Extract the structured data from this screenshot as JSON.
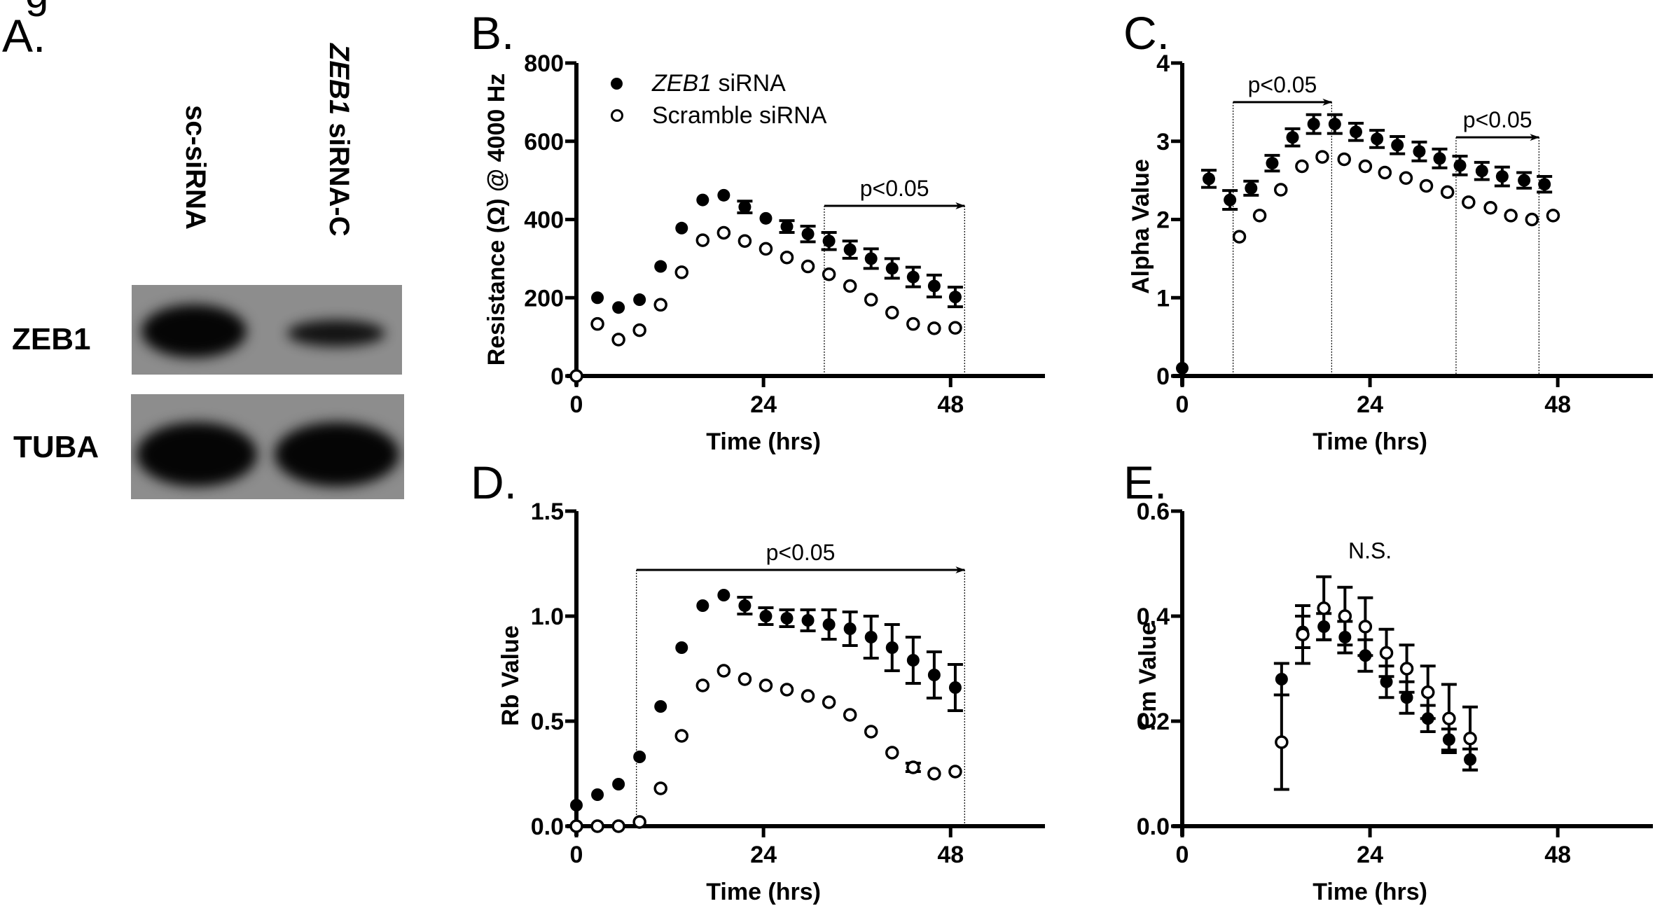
{
  "figure_fragment_top": "g",
  "panelA": {
    "letter": "A.",
    "lanes": [
      {
        "label": "sc-siRNA",
        "italic_part": "",
        "rest": "sc-siRNA"
      },
      {
        "label": "ZEB1 siRNA-C",
        "italic_part": "ZEB1",
        "rest": " siRNA-C"
      }
    ],
    "bands": [
      {
        "label": "ZEB1",
        "intensities": [
          1.0,
          0.55
        ]
      },
      {
        "label": "TUBA",
        "intensities": [
          1.0,
          1.0
        ]
      }
    ]
  },
  "legend": {
    "entries": [
      {
        "marker": "filled-circle",
        "italic_part": "ZEB1",
        "rest": " siRNA"
      },
      {
        "marker": "open-circle",
        "italic_part": "",
        "rest": "Scramble siRNA"
      }
    ]
  },
  "chart_data": [
    {
      "id": "B",
      "letter": "B.",
      "type": "scatter",
      "title": "",
      "xlabel": "Time (hrs)",
      "ylabel": "Resistance (Ω) @ 4000 Hz",
      "xlim": [
        0,
        60
      ],
      "ylim": [
        0,
        800
      ],
      "xticks": [
        0,
        24,
        48
      ],
      "yticks": [
        0,
        200,
        400,
        600,
        800
      ],
      "ytick_labels": [
        "0",
        "200",
        "400",
        "600",
        "800"
      ],
      "grid": false,
      "legend_position": "top-left",
      "series": [
        {
          "name": "ZEB1 siRNA",
          "marker": "filled",
          "x": [
            0,
            2.7,
            5.4,
            8.1,
            10.8,
            13.5,
            16.2,
            18.9,
            21.6,
            24.3,
            27,
            29.7,
            32.4,
            35.1,
            37.8,
            40.5,
            43.2,
            45.9,
            48.6
          ],
          "y": [
            0,
            200,
            175,
            195,
            280,
            378,
            450,
            462,
            432,
            403,
            382,
            363,
            345,
            323,
            300,
            275,
            253,
            230,
            202
          ],
          "err": [
            0,
            0,
            0,
            0,
            0,
            0,
            0,
            0,
            15,
            0,
            15,
            20,
            22,
            22,
            25,
            25,
            25,
            28,
            25
          ]
        },
        {
          "name": "Scramble siRNA",
          "marker": "open",
          "x": [
            0,
            2.7,
            5.4,
            8.1,
            10.8,
            13.5,
            16.2,
            18.9,
            21.6,
            24.3,
            27,
            29.7,
            32.4,
            35.1,
            37.8,
            40.5,
            43.2,
            45.9,
            48.6
          ],
          "y": [
            0,
            133,
            93,
            117,
            182,
            265,
            347,
            366,
            345,
            325,
            303,
            280,
            260,
            230,
            195,
            162,
            133,
            122,
            123
          ],
          "err": []
        }
      ],
      "annotations": [
        {
          "text": "p<0.05",
          "x_start": 31.8,
          "x_end": 49.8,
          "y": 435
        }
      ]
    },
    {
      "id": "C",
      "letter": "C.",
      "type": "scatter",
      "title": "",
      "xlabel": "Time (hrs)",
      "ylabel": "Alpha Value",
      "xlim": [
        0,
        60
      ],
      "ylim": [
        0,
        4
      ],
      "xticks": [
        0,
        24,
        48
      ],
      "yticks": [
        0,
        1,
        2,
        3,
        4
      ],
      "ytick_labels": [
        "0",
        "1",
        "2",
        "3",
        "4"
      ],
      "grid": false,
      "series": [
        {
          "name": "ZEB1 siRNA",
          "marker": "filled",
          "x": [
            0,
            3.4,
            6.1,
            8.8,
            11.5,
            14.1,
            16.8,
            19.5,
            22.2,
            24.9,
            27.5,
            30.3,
            32.9,
            35.5,
            38.3,
            40.9,
            43.7,
            46.3
          ],
          "y": [
            0.1,
            2.52,
            2.25,
            2.4,
            2.72,
            3.05,
            3.22,
            3.22,
            3.12,
            3.03,
            2.95,
            2.87,
            2.78,
            2.69,
            2.62,
            2.55,
            2.5,
            2.45
          ],
          "err": [
            0,
            0.11,
            0.12,
            0.09,
            0.1,
            0.11,
            0.12,
            0.12,
            0.11,
            0.11,
            0.11,
            0.12,
            0.12,
            0.12,
            0.11,
            0.12,
            0.1,
            0.1
          ]
        },
        {
          "name": "Scramble siRNA",
          "marker": "open",
          "x": [
            7.3,
            9.9,
            12.6,
            15.3,
            17.9,
            20.7,
            23.4,
            25.9,
            28.6,
            31.2,
            33.9,
            36.6,
            39.4,
            42,
            44.7,
            47.4
          ],
          "y": [
            1.78,
            2.05,
            2.38,
            2.68,
            2.8,
            2.77,
            2.68,
            2.6,
            2.53,
            2.43,
            2.35,
            2.22,
            2.15,
            2.05,
            2.0,
            2.05
          ],
          "err": []
        }
      ],
      "annotations": [
        {
          "text": "p<0.05",
          "x_start": 6.5,
          "x_end": 19.1,
          "y": 3.5
        },
        {
          "text": "p<0.05",
          "x_start": 35.0,
          "x_end": 45.6,
          "y": 3.05
        }
      ]
    },
    {
      "id": "D",
      "letter": "D.",
      "type": "scatter",
      "title": "",
      "xlabel": "Time (hrs)",
      "ylabel": "Rb Value",
      "xlim": [
        0,
        60
      ],
      "ylim": [
        0,
        1.5
      ],
      "xticks": [
        0,
        24,
        48
      ],
      "yticks": [
        0,
        0.5,
        1.0,
        1.5
      ],
      "ytick_labels": [
        "0.0",
        "0.5",
        "1.0",
        "1.5"
      ],
      "grid": false,
      "series": [
        {
          "name": "ZEB1 siRNA",
          "marker": "filled",
          "x": [
            0,
            2.7,
            5.4,
            8.1,
            10.8,
            13.5,
            16.2,
            18.9,
            21.6,
            24.3,
            27,
            29.7,
            32.4,
            35.1,
            37.8,
            40.5,
            43.2,
            45.9,
            48.6
          ],
          "y": [
            0.1,
            0.15,
            0.2,
            0.33,
            0.57,
            0.85,
            1.05,
            1.1,
            1.05,
            1.0,
            0.99,
            0.98,
            0.96,
            0.94,
            0.9,
            0.85,
            0.79,
            0.72,
            0.66
          ],
          "err": [
            0,
            0,
            0,
            0,
            0,
            0,
            0,
            0,
            0.04,
            0.04,
            0.04,
            0.05,
            0.07,
            0.08,
            0.1,
            0.11,
            0.11,
            0.11,
            0.11
          ]
        },
        {
          "name": "Scramble siRNA",
          "marker": "open",
          "x": [
            0,
            2.7,
            5.4,
            8.1,
            10.8,
            13.5,
            16.2,
            18.9,
            21.6,
            24.3,
            27,
            29.7,
            32.4,
            35.1,
            37.8,
            40.5,
            43.2,
            45.9,
            48.6
          ],
          "y": [
            0,
            0,
            0,
            0.02,
            0.18,
            0.43,
            0.67,
            0.74,
            0.7,
            0.67,
            0.65,
            0.62,
            0.59,
            0.53,
            0.45,
            0.35,
            0.28,
            0.25,
            0.26
          ],
          "err": [
            0,
            0,
            0,
            0,
            0,
            0,
            0,
            0,
            0,
            0,
            0,
            0,
            0,
            0,
            0,
            0,
            0.02,
            0,
            0
          ]
        }
      ],
      "annotations": [
        {
          "text": "p<0.05",
          "x_start": 7.7,
          "x_end": 49.8,
          "y": 1.22
        }
      ]
    },
    {
      "id": "E",
      "letter": "E.",
      "type": "scatter",
      "title": "",
      "xlabel": "Time (hrs)",
      "ylabel": "Cm Value",
      "xlim": [
        0,
        60
      ],
      "ylim": [
        0,
        0.6
      ],
      "xticks": [
        0,
        24,
        48
      ],
      "yticks": [
        0,
        0.2,
        0.4,
        0.6
      ],
      "ytick_labels": [
        "0.0",
        "0.2",
        "0.4",
        "0.6"
      ],
      "grid": false,
      "series": [
        {
          "name": "ZEB1 siRNA",
          "marker": "filled",
          "x": [
            12.7,
            15.4,
            18.1,
            20.8,
            23.4,
            26.1,
            28.7,
            31.4,
            34.1,
            36.8
          ],
          "y": [
            0.28,
            0.37,
            0.38,
            0.36,
            0.325,
            0.275,
            0.245,
            0.205,
            0.165,
            0.127
          ],
          "err": [
            0.03,
            0.03,
            0.025,
            0.03,
            0.03,
            0.03,
            0.03,
            0.025,
            0.02,
            0.02
          ]
        },
        {
          "name": "Scramble siRNA",
          "marker": "open",
          "x": [
            12.7,
            15.4,
            18.1,
            20.8,
            23.4,
            26.1,
            28.7,
            31.4,
            34.1,
            36.8
          ],
          "y": [
            0.16,
            0.365,
            0.415,
            0.4,
            0.38,
            0.33,
            0.3,
            0.255,
            0.205,
            0.167
          ],
          "err": [
            0.09,
            0.055,
            0.06,
            0.055,
            0.055,
            0.045,
            0.045,
            0.05,
            0.065,
            0.06
          ]
        }
      ],
      "annotations": [
        {
          "text": "N.S.",
          "x": 24,
          "y": 0.51
        }
      ]
    }
  ]
}
